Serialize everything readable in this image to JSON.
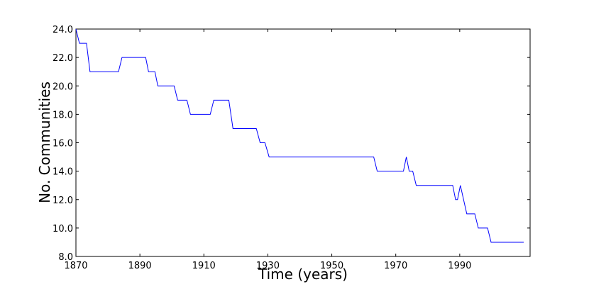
{
  "chart_data": {
    "type": "line",
    "x_label": "Time (years)",
    "y_label": "No. Communities",
    "x": [
      1870,
      1871.1,
      1873.3,
      1874.4,
      1883.3,
      1884.4,
      1891.8,
      1892.7,
      1894.7,
      1895.6,
      1900.7,
      1901.8,
      1904.7,
      1905.8,
      1912,
      1913.1,
      1917.8,
      1919.1,
      1926.4,
      1927.6,
      1929.1,
      1930.4,
      1963.1,
      1964.2,
      1972.4,
      1973.3,
      1974.2,
      1975.3,
      1976.4,
      1987.8,
      1988.7,
      1989.3,
      1990.2,
      1992.2,
      1994.7,
      1995.8,
      1998.7,
      1999.8,
      2010
    ],
    "series": [
      {
        "color": "#0000ff",
        "values": [
          24,
          23,
          23,
          21,
          21,
          22,
          22,
          21,
          21,
          20,
          20,
          19,
          19,
          18,
          18,
          19,
          19,
          17,
          17,
          16,
          16,
          15,
          15,
          14,
          14,
          15,
          14,
          14,
          13,
          13,
          12,
          12,
          13,
          11,
          11,
          10,
          10,
          9,
          9
        ]
      }
    ],
    "xlim": [
      1870,
      2012
    ],
    "ylim": [
      8,
      24
    ],
    "xticks": [
      1870,
      1890,
      1910,
      1930,
      1950,
      1970,
      1990
    ],
    "yticks": [
      {
        "value": 8,
        "label": "8.0"
      },
      {
        "value": 10,
        "label": "10.0"
      },
      {
        "value": 12,
        "label": "12.0"
      },
      {
        "value": 14,
        "label": "14.0"
      },
      {
        "value": 16,
        "label": "16.0"
      },
      {
        "value": 18,
        "label": "18.0"
      },
      {
        "value": 20,
        "label": "20.0"
      },
      {
        "value": 22,
        "label": "22.0"
      },
      {
        "value": 24,
        "label": "24.0"
      }
    ]
  }
}
